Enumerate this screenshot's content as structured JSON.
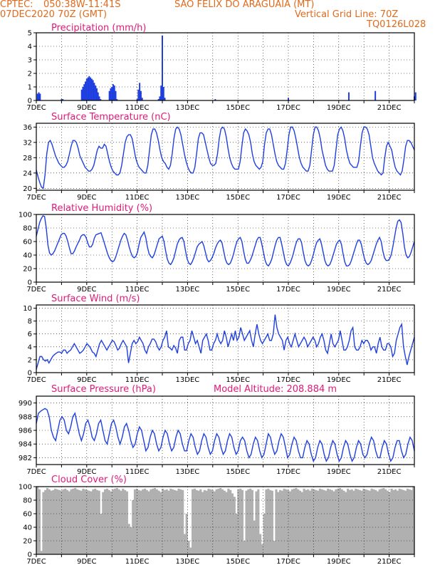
{
  "header": {
    "source": "CPTEC:",
    "coords": "050:38W-11:41S",
    "station": "SAO FELIX DO ARAGUAIA (MT)",
    "run": "07DEC2020 70Z (GMT)",
    "grid_line": "Vertical Grid Line: 70Z",
    "code": "TQ0126L028"
  },
  "colors": {
    "header": "#e06a1c",
    "title": "#e0197a",
    "line": "#1f3fe0",
    "cloud": "#b0b0b0"
  },
  "chart_data": [
    {
      "type": "bar",
      "title": "Precipitation (mm/h)",
      "x_ticks": [
        "7DEC",
        "9DEC",
        "11DEC",
        "13DEC",
        "15DEC",
        "17DEC",
        "19DEC",
        "21DEC"
      ],
      "ylim": [
        0,
        5
      ],
      "yticks": [
        0,
        1,
        2,
        3,
        4,
        5
      ],
      "x": [
        0.05,
        0.1,
        0.15,
        1.0,
        1.05,
        1.8,
        1.85,
        1.9,
        1.95,
        2.0,
        2.05,
        2.1,
        2.15,
        2.2,
        2.25,
        2.3,
        2.35,
        2.4,
        2.45,
        2.5,
        2.55,
        2.9,
        2.95,
        3.0,
        3.05,
        3.1,
        3.15,
        3.2,
        4.0,
        4.05,
        4.1,
        4.15,
        4.2,
        4.85,
        4.9,
        4.95,
        5.0,
        5.05,
        5.1,
        7.1,
        10.0,
        12.4,
        13.45,
        15.0,
        15.05,
        18.9,
        19.0,
        21.0,
        21.3,
        21.4,
        21.45,
        21.85,
        21.9,
        21.95,
        22.0,
        22.05,
        22.1,
        22.15,
        22.2,
        22.25
      ],
      "values": [
        0.5,
        0.6,
        0.5,
        0.1,
        0.1,
        0.8,
        1.0,
        1.2,
        1.4,
        1.6,
        1.7,
        1.8,
        1.7,
        1.6,
        1.5,
        1.3,
        1.1,
        0.9,
        0.6,
        0.3,
        0.1,
        0.7,
        0.9,
        1.0,
        1.2,
        1.1,
        0.7,
        0.1,
        0.1,
        0.8,
        1.3,
        0.7,
        0.2,
        0.1,
        0.3,
        1.1,
        4.8,
        1.0,
        0.2,
        0.1,
        0.2,
        0.6,
        0.7,
        0.3,
        0.6,
        0.2,
        0.5,
        0.4,
        0.7,
        0.6,
        0.3,
        0.2,
        0.4,
        0.6,
        0.5,
        0.6,
        1.0,
        0.4,
        0.5,
        0.2
      ]
    },
    {
      "type": "line",
      "title": "Surface Temperature (nC)",
      "x_ticks": [
        "7DEC",
        "9DEC",
        "11DEC",
        "13DEC",
        "15DEC",
        "17DEC",
        "19DEC",
        "21DEC"
      ],
      "ylim": [
        19.5,
        37
      ],
      "yticks": [
        20,
        24,
        28,
        32,
        36
      ],
      "values": [
        24.8,
        23,
        21.5,
        20.3,
        20,
        23.5,
        29,
        32,
        32.5,
        31.5,
        30,
        28.5,
        27.5,
        26.5,
        26,
        25.5,
        25.5,
        26,
        27,
        29,
        31,
        32.5,
        32.5,
        32,
        30.5,
        28.5,
        27.5,
        26.5,
        25.5,
        25,
        24.5,
        24.5,
        25,
        26,
        28,
        30,
        31,
        30.5,
        30.5,
        31.5,
        31,
        29,
        27,
        25.5,
        24.5,
        24,
        23.5,
        23.5,
        24,
        26,
        29,
        32,
        33.5,
        34,
        34,
        33,
        30.5,
        28,
        26.5,
        25.5,
        25,
        24.5,
        24,
        24,
        26,
        30,
        34,
        35.5,
        35.5,
        34.5,
        32.5,
        30,
        28,
        27,
        26.5,
        25.5,
        25,
        26,
        29,
        33,
        35.5,
        36,
        35.5,
        34,
        31.5,
        29,
        27,
        25.5,
        24.5,
        24,
        24,
        25.5,
        29,
        33,
        34.5,
        34.5,
        34,
        32,
        30,
        28,
        26.5,
        26,
        26,
        26.5,
        29,
        33,
        35.5,
        36,
        35.5,
        33.5,
        30.5,
        28,
        26.5,
        25.5,
        25,
        25,
        25,
        27,
        31,
        34.5,
        35.5,
        35,
        34,
        32,
        29,
        27,
        26,
        25.5,
        25,
        25.5,
        27,
        31.5,
        34.5,
        35.5,
        35.5,
        34,
        31.5,
        29,
        27,
        26,
        25.5,
        25,
        25,
        26.5,
        30,
        34,
        36,
        36,
        35,
        33,
        30.5,
        28,
        26.5,
        25.5,
        25,
        24.5,
        24.5,
        26,
        30,
        34,
        36,
        36,
        35,
        33,
        30,
        28,
        26,
        25,
        24.5,
        24.5,
        24.5,
        26,
        30,
        34,
        35.5,
        36,
        35,
        33,
        30,
        28,
        26.5,
        26,
        25.5,
        25.5,
        25.5,
        27,
        31,
        34.5,
        36,
        36,
        35.5,
        34,
        31,
        28,
        26.5,
        25.5,
        24.5,
        24,
        23.5,
        24,
        28,
        31,
        32,
        31,
        30,
        27.5,
        25.5,
        24.5,
        24,
        23.5,
        24.5,
        27.5,
        31,
        32.5,
        32.5,
        32,
        31,
        30
      ]
    },
    {
      "type": "line",
      "title": "Relative Humidity (%)",
      "x_ticks": [
        "7DEC",
        "9DEC",
        "11DEC",
        "13DEC",
        "15DEC",
        "17DEC",
        "19DEC",
        "21DEC"
      ],
      "ylim": [
        0,
        100
      ],
      "yticks": [
        0,
        20,
        40,
        60,
        80,
        100
      ],
      "values": [
        68,
        78,
        88,
        94,
        98,
        97,
        80,
        55,
        43,
        40,
        42,
        46,
        52,
        58,
        64,
        70,
        72,
        72,
        68,
        60,
        50,
        42,
        42,
        46,
        52,
        57,
        62,
        68,
        70,
        70,
        66,
        58,
        52,
        52,
        56,
        65,
        70,
        71,
        72,
        73,
        66,
        58,
        50,
        42,
        36,
        32,
        30,
        32,
        38,
        46,
        54,
        62,
        68,
        72,
        70,
        62,
        52,
        44,
        38,
        36,
        38,
        44,
        56,
        66,
        70,
        74,
        66,
        52,
        42,
        38,
        36,
        40,
        48,
        56,
        64,
        66,
        68,
        60,
        46,
        34,
        28,
        26,
        30,
        36,
        46,
        56,
        62,
        65,
        66,
        60,
        46,
        34,
        28,
        26,
        30,
        36,
        44,
        52,
        56,
        58,
        60,
        54,
        44,
        34,
        30,
        32,
        36,
        42,
        50,
        56,
        60,
        62,
        58,
        46,
        34,
        28,
        26,
        28,
        34,
        42,
        52,
        60,
        64,
        66,
        60,
        46,
        34,
        28,
        28,
        32,
        38,
        46,
        54,
        62,
        66,
        66,
        56,
        44,
        32,
        26,
        24,
        28,
        34,
        44,
        54,
        62,
        66,
        66,
        56,
        44,
        32,
        26,
        24,
        28,
        34,
        42,
        52,
        60,
        64,
        64,
        58,
        44,
        32,
        26,
        24,
        26,
        32,
        40,
        50,
        58,
        62,
        64,
        56,
        44,
        32,
        26,
        24,
        26,
        32,
        40,
        48,
        56,
        60,
        62,
        56,
        42,
        30,
        24,
        24,
        26,
        32,
        40,
        48,
        56,
        62,
        62,
        56,
        44,
        34,
        28,
        26,
        28,
        32,
        40,
        48,
        56,
        62,
        66,
        60,
        46,
        36,
        32,
        32,
        34,
        40,
        52,
        66,
        80,
        90,
        92,
        88,
        72,
        52,
        40,
        36,
        38,
        44,
        52,
        60
      ]
    },
    {
      "type": "line",
      "title": "Surface Wind (m/s)",
      "x_ticks": [
        "7DEC",
        "9DEC",
        "11DEC",
        "13DEC",
        "15DEC",
        "17DEC",
        "19DEC",
        "21DEC"
      ],
      "ylim": [
        0,
        10.5
      ],
      "yticks": [
        0,
        2,
        4,
        6,
        8,
        10
      ],
      "values": [
        0.5,
        1.5,
        2.5,
        2.5,
        2,
        1.8,
        2,
        1.5,
        2,
        2.5,
        2.8,
        3,
        3.2,
        3.2,
        3,
        3.5,
        3.5,
        3,
        3.3,
        3.5,
        4,
        4.5,
        4,
        3.5,
        3,
        3.2,
        3.5,
        4,
        4.5,
        4.2,
        3.8,
        3.2,
        3,
        2.5,
        3.5,
        4.5,
        5,
        4.5,
        4,
        3.5,
        4,
        4.5,
        5,
        4.8,
        4.2,
        3.5,
        3.8,
        4.5,
        5,
        4.5,
        4,
        1.5,
        3,
        4.5,
        5,
        4.5,
        4.8,
        5.5,
        5,
        4.5,
        3.5,
        3,
        4,
        4.5,
        5.2,
        5.2,
        4.8,
        4,
        3.5,
        4,
        5,
        5.5,
        6.5,
        4,
        3.8,
        3.5,
        4.2,
        3.8,
        3,
        5,
        5.5,
        5.5,
        3.5,
        3.5,
        4.5,
        5,
        6.5,
        5.5,
        4.5,
        5,
        4,
        3,
        5,
        5.5,
        6,
        5,
        3.5,
        3.5,
        4.5,
        5,
        6,
        5,
        4.5,
        5,
        6.5,
        5.5,
        4,
        5,
        6,
        5,
        6.5,
        5,
        5.5,
        7,
        6,
        5,
        5.5,
        6,
        6.5,
        5,
        4,
        6,
        7.5,
        6,
        5,
        4.5,
        5,
        5.5,
        6,
        5,
        5,
        6,
        9,
        7,
        6,
        5.5,
        5,
        3.5,
        5,
        5.5,
        4.5,
        4,
        5,
        6,
        5,
        4,
        4.5,
        5,
        5.5,
        5,
        4,
        4.5,
        5,
        5.5,
        5,
        4,
        4.5,
        5.5,
        6,
        5,
        3.5,
        3,
        4.5,
        6,
        4.5,
        4,
        4.5,
        5,
        6.5,
        5,
        3.5,
        3.5,
        4,
        5,
        6.5,
        7,
        4,
        3.5,
        3.5,
        4,
        5,
        4.5,
        5,
        5,
        4.5,
        3.5,
        4,
        4,
        3,
        4.5,
        5.5,
        4,
        3.5,
        3.5,
        4.5,
        4.5,
        4,
        2.5,
        3,
        5,
        6,
        7,
        7.5,
        4,
        2.5,
        1.2,
        2.5,
        3.5,
        4.5,
        5.5
      ]
    },
    {
      "type": "line",
      "title": "Surface Pressure (hPa)",
      "annotation": "Model Altitude: 208.884 m",
      "x_ticks": [
        "7DEC",
        "9DEC",
        "11DEC",
        "13DEC",
        "15DEC",
        "17DEC",
        "19DEC",
        "21DEC"
      ],
      "ylim": [
        981,
        991
      ],
      "yticks": [
        982,
        984,
        986,
        988,
        990
      ],
      "values": [
        987,
        988.5,
        988.8,
        989,
        989.2,
        989,
        988,
        986,
        985,
        984.5,
        986,
        987.5,
        988,
        987.5,
        986,
        985.5,
        986.5,
        988,
        988.5,
        987,
        985.5,
        984.5,
        985.5,
        987,
        987.5,
        986.5,
        985,
        984.5,
        985.5,
        987,
        987.5,
        986,
        984.5,
        984,
        985.5,
        987,
        987.5,
        986.5,
        985,
        984,
        985,
        986.5,
        987,
        986,
        984.5,
        983.5,
        984,
        985.5,
        986.5,
        986,
        984.5,
        983,
        983.5,
        985,
        986,
        985.5,
        984,
        983,
        983.5,
        985,
        986,
        985.5,
        984,
        983,
        983.5,
        985,
        986,
        985.5,
        984,
        983,
        983,
        984.5,
        985.5,
        985,
        983.5,
        982.5,
        983,
        984.5,
        985.5,
        985,
        983.5,
        982.5,
        983,
        984.5,
        985.5,
        985,
        983.5,
        982.5,
        983,
        984.5,
        985.5,
        985,
        983.5,
        982.5,
        983,
        984.5,
        985,
        984.5,
        983,
        982,
        982.5,
        984,
        985,
        984.5,
        983,
        982,
        982.5,
        984,
        985.5,
        985,
        983.5,
        982.5,
        983,
        984.5,
        985.5,
        985,
        983.5,
        982,
        982.5,
        984,
        985,
        984.5,
        983,
        982,
        982,
        983.5,
        984.5,
        984,
        982.5,
        981.5,
        982,
        983.5,
        984.5,
        984,
        982.5,
        981.5,
        982,
        983.5,
        984.5,
        984,
        982.5,
        981.5,
        982,
        983.5,
        984.5,
        984,
        982.5,
        981.5,
        982,
        983.5,
        984.5,
        984,
        982.5,
        982,
        982.5,
        984,
        985,
        984.5,
        983,
        982,
        982,
        983.5,
        984.5,
        984,
        982.5,
        981.5,
        982,
        983.5,
        984.5,
        984.5,
        983,
        982,
        982.5,
        984,
        985,
        984.5,
        983
      ]
    },
    {
      "type": "area",
      "title": "Cloud Cover (%)",
      "x_ticks": [
        "7DEC",
        "9DEC",
        "11DEC",
        "13DEC",
        "15DEC",
        "17DEC",
        "19DEC",
        "21DEC"
      ],
      "ylim": [
        0,
        100
      ],
      "yticks": [
        0,
        20,
        40,
        60,
        80,
        100
      ],
      "values": [
        100,
        96,
        5,
        92,
        95,
        98,
        96,
        94,
        95,
        97,
        96,
        95,
        94,
        96,
        97,
        95,
        93,
        96,
        97,
        98,
        96,
        95,
        94,
        97,
        96,
        95,
        94,
        93,
        96,
        97,
        95,
        94,
        60,
        92,
        96,
        97,
        95,
        93,
        96,
        97,
        98,
        96,
        94,
        97,
        95,
        93,
        45,
        40,
        80,
        96,
        97,
        95,
        94,
        96,
        97,
        95,
        93,
        96,
        97,
        98,
        96,
        94,
        92,
        97,
        95,
        96,
        94,
        97,
        96,
        95,
        94,
        97,
        96,
        95,
        30,
        60,
        20,
        10,
        96,
        97,
        95,
        94,
        96,
        92,
        95,
        94,
        97,
        96,
        95,
        93,
        96,
        97,
        98,
        96,
        94,
        92,
        97,
        95,
        90,
        85,
        60,
        96,
        97,
        95,
        20,
        94,
        96,
        97,
        95,
        50,
        93,
        96,
        30,
        15,
        60,
        96,
        97,
        95,
        94,
        20,
        96,
        92,
        95,
        94,
        97,
        96,
        95,
        93,
        96,
        97,
        98,
        96,
        94,
        92,
        97,
        95,
        96,
        94,
        97,
        96,
        95,
        94,
        97,
        96,
        95,
        94,
        97,
        96,
        95,
        93,
        96,
        97,
        98,
        96,
        94,
        92,
        97,
        95,
        96,
        94,
        97,
        96,
        95,
        94,
        97,
        96,
        95,
        94,
        97,
        96,
        95,
        93,
        96,
        97,
        98,
        96,
        94,
        92,
        97,
        95,
        96,
        94,
        97,
        96,
        95,
        94,
        97,
        96,
        95,
        100
      ]
    }
  ]
}
